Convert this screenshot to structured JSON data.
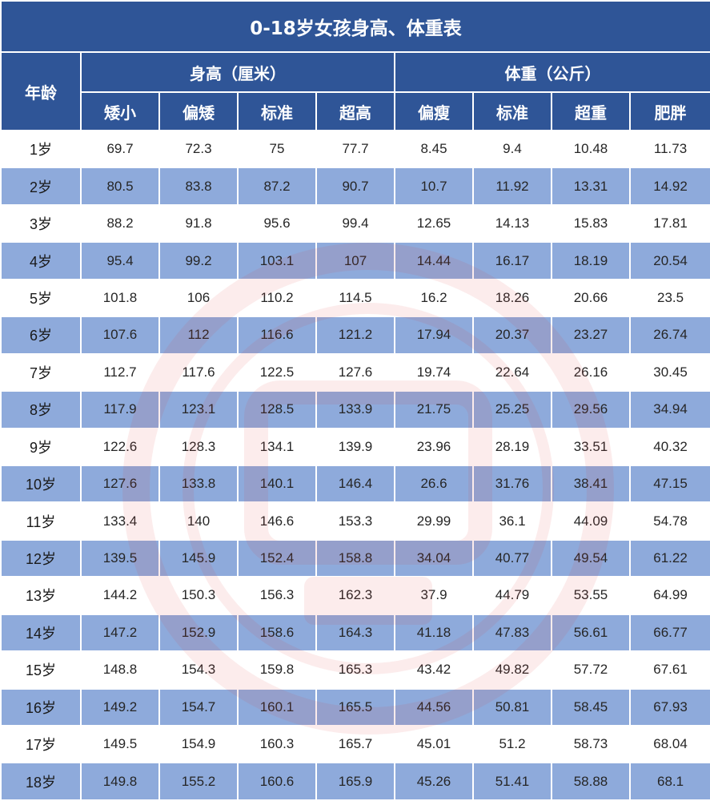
{
  "title": "0-18岁女孩身高、体重表",
  "headers": {
    "age": "年龄",
    "height_group": "身高（厘米）",
    "weight_group": "体重（公斤）",
    "height_cols": [
      "矮小",
      "偏矮",
      "标准",
      "超高"
    ],
    "weight_cols": [
      "偏瘦",
      "标准",
      "超重",
      "肥胖"
    ]
  },
  "rows": [
    {
      "age": "1岁",
      "h": [
        "69.7",
        "72.3",
        "75",
        "77.7"
      ],
      "w": [
        "8.45",
        "9.4",
        "10.48",
        "11.73"
      ]
    },
    {
      "age": "2岁",
      "h": [
        "80.5",
        "83.8",
        "87.2",
        "90.7"
      ],
      "w": [
        "10.7",
        "11.92",
        "13.31",
        "14.92"
      ]
    },
    {
      "age": "3岁",
      "h": [
        "88.2",
        "91.8",
        "95.6",
        "99.4"
      ],
      "w": [
        "12.65",
        "14.13",
        "15.83",
        "17.81"
      ]
    },
    {
      "age": "4岁",
      "h": [
        "95.4",
        "99.2",
        "103.1",
        "107"
      ],
      "w": [
        "14.44",
        "16.17",
        "18.19",
        "20.54"
      ]
    },
    {
      "age": "5岁",
      "h": [
        "101.8",
        "106",
        "110.2",
        "114.5"
      ],
      "w": [
        "16.2",
        "18.26",
        "20.66",
        "23.5"
      ]
    },
    {
      "age": "6岁",
      "h": [
        "107.6",
        "112",
        "116.6",
        "121.2"
      ],
      "w": [
        "17.94",
        "20.37",
        "23.27",
        "26.74"
      ]
    },
    {
      "age": "7岁",
      "h": [
        "112.7",
        "117.6",
        "122.5",
        "127.6"
      ],
      "w": [
        "19.74",
        "22.64",
        "26.16",
        "30.45"
      ]
    },
    {
      "age": "8岁",
      "h": [
        "117.9",
        "123.1",
        "128.5",
        "133.9"
      ],
      "w": [
        "21.75",
        "25.25",
        "29.56",
        "34.94"
      ]
    },
    {
      "age": "9岁",
      "h": [
        "122.6",
        "128.3",
        "134.1",
        "139.9"
      ],
      "w": [
        "23.96",
        "28.19",
        "33.51",
        "40.32"
      ]
    },
    {
      "age": "10岁",
      "h": [
        "127.6",
        "133.8",
        "140.1",
        "146.4"
      ],
      "w": [
        "26.6",
        "31.76",
        "38.41",
        "47.15"
      ]
    },
    {
      "age": "11岁",
      "h": [
        "133.4",
        "140",
        "146.6",
        "153.3"
      ],
      "w": [
        "29.99",
        "36.1",
        "44.09",
        "54.78"
      ]
    },
    {
      "age": "12岁",
      "h": [
        "139.5",
        "145.9",
        "152.4",
        "158.8"
      ],
      "w": [
        "34.04",
        "40.77",
        "49.54",
        "61.22"
      ]
    },
    {
      "age": "13岁",
      "h": [
        "144.2",
        "150.3",
        "156.3",
        "162.3"
      ],
      "w": [
        "37.9",
        "44.79",
        "53.55",
        "64.99"
      ]
    },
    {
      "age": "14岁",
      "h": [
        "147.2",
        "152.9",
        "158.6",
        "164.3"
      ],
      "w": [
        "41.18",
        "47.83",
        "56.61",
        "66.77"
      ]
    },
    {
      "age": "15岁",
      "h": [
        "148.8",
        "154.3",
        "159.8",
        "165.3"
      ],
      "w": [
        "43.42",
        "49.82",
        "57.72",
        "67.61"
      ]
    },
    {
      "age": "16岁",
      "h": [
        "149.2",
        "154.7",
        "160.1",
        "165.5"
      ],
      "w": [
        "44.56",
        "50.81",
        "58.45",
        "67.93"
      ]
    },
    {
      "age": "17岁",
      "h": [
        "149.5",
        "154.9",
        "160.3",
        "165.7"
      ],
      "w": [
        "45.01",
        "51.2",
        "58.73",
        "68.04"
      ]
    },
    {
      "age": "18岁",
      "h": [
        "149.8",
        "155.2",
        "160.6",
        "165.9"
      ],
      "w": [
        "45.26",
        "51.41",
        "58.88",
        "68.1"
      ]
    }
  ],
  "colors": {
    "header_bg": "#2f5597",
    "stripe_bg": "#8eaadb",
    "plain_bg": "#ffffff",
    "watermark": "#e03a3a"
  }
}
